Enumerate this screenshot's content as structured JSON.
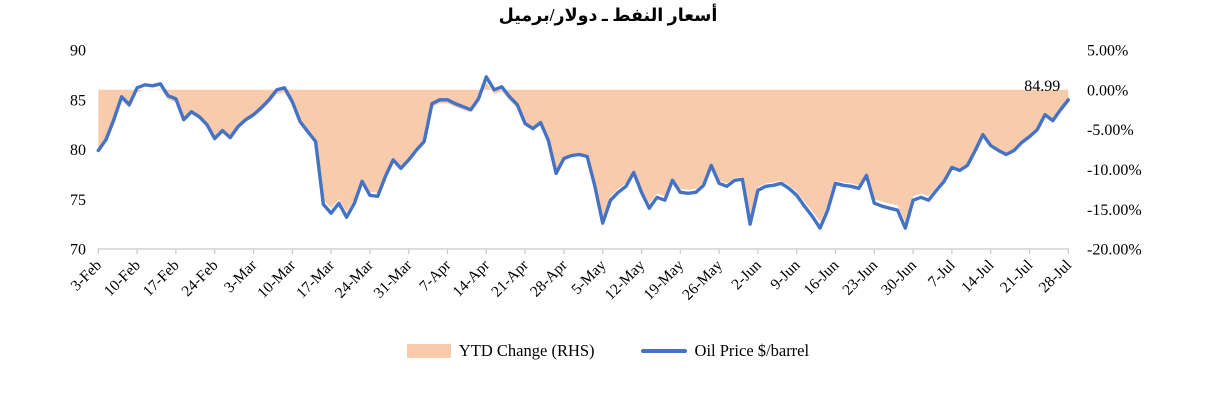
{
  "chart_data": {
    "type": "line",
    "title": "أسعار النفط ـ دولار/برميل",
    "title_translation": "Oil prices - dollar/barrel",
    "x_labels": [
      "3-Feb",
      "10-Feb",
      "17-Feb",
      "24-Feb",
      "3-Mar",
      "10-Mar",
      "17-Mar",
      "24-Mar",
      "31-Mar",
      "7-Apr",
      "14-Apr",
      "21-Apr",
      "28-Apr",
      "5-May",
      "12-May",
      "19-May",
      "26-May",
      "2-Jun",
      "9-Jun",
      "16-Jun",
      "23-Jun",
      "30-Jun",
      "7-Jul",
      "14-Jul",
      "21-Jul",
      "28-Jul"
    ],
    "label_every_n_points": 5,
    "series": [
      {
        "name": "YTD Change (RHS)",
        "type": "area",
        "axis": "right",
        "color": "#F8CBAD",
        "derived_from": "oil_price",
        "formula": "ytd_pct = (price / ytd_base - 1) * 100",
        "ytd_base": 86.47
      },
      {
        "name": "Oil Price $/barrel",
        "type": "line",
        "axis": "left",
        "color": "#4472C4",
        "values": [
          79.9,
          81.0,
          83.0,
          85.3,
          84.5,
          86.2,
          86.5,
          86.4,
          86.6,
          85.4,
          85.1,
          83.0,
          83.8,
          83.3,
          82.5,
          81.1,
          81.9,
          81.2,
          82.3,
          83.0,
          83.5,
          84.2,
          85.0,
          86.0,
          86.2,
          84.8,
          82.8,
          81.8,
          80.8,
          74.5,
          73.6,
          74.6,
          73.2,
          74.6,
          76.8,
          75.4,
          75.3,
          77.3,
          78.95,
          78.1,
          78.95,
          79.95,
          80.8,
          84.6,
          85.0,
          85.0,
          84.6,
          84.3,
          84.0,
          85.1,
          87.3,
          86.0,
          86.3,
          85.3,
          84.5,
          82.6,
          82.1,
          82.7,
          80.9,
          77.6,
          79.1,
          79.4,
          79.5,
          79.3,
          76.3,
          72.6,
          74.9,
          75.7,
          76.3,
          77.7,
          75.7,
          74.1,
          75.2,
          74.9,
          76.9,
          75.7,
          75.6,
          75.7,
          76.4,
          78.4,
          76.6,
          76.3,
          76.9,
          77.0,
          72.5,
          75.9,
          76.3,
          76.4,
          76.6,
          76.1,
          75.4,
          74.3,
          73.3,
          72.1,
          73.9,
          76.6,
          76.4,
          76.3,
          76.1,
          77.4,
          74.6,
          74.3,
          74.1,
          73.9,
          72.1,
          74.9,
          75.2,
          74.9,
          75.9,
          76.8,
          78.2,
          77.9,
          78.4,
          79.9,
          81.5,
          80.4,
          79.9,
          79.5,
          79.9,
          80.7,
          81.3,
          82.0,
          83.5,
          82.9,
          84.0,
          84.99
        ]
      }
    ],
    "left_axis": {
      "min": 70,
      "max": 90,
      "tick_labels": [
        "90",
        "85",
        "80",
        "75",
        "70"
      ],
      "tick_values": [
        90,
        85,
        80,
        75,
        70
      ]
    },
    "right_axis": {
      "min": -20,
      "max": 5,
      "tick_labels": [
        "5.00%",
        "0.00%",
        "-5.00%",
        "-10.00%",
        "-15.00%",
        "-20.00%"
      ],
      "tick_values": [
        5,
        0,
        -5,
        -10,
        -15,
        -20
      ]
    },
    "end_label": "84.99",
    "grid": "off",
    "legend_position": "bottom",
    "axis_line_color": "#C9C9C9",
    "text_color": "#000000"
  }
}
